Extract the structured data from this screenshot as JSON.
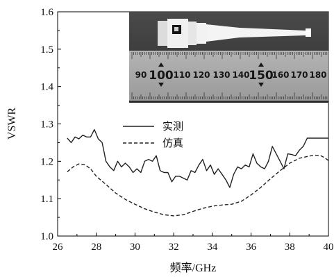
{
  "chart_data": {
    "type": "line",
    "title": "",
    "xlabel": "频率/GHz",
    "ylabel": "VSWR",
    "xlim": [
      26,
      40
    ],
    "ylim": [
      1.0,
      1.6
    ],
    "xticks": [
      26,
      28,
      30,
      32,
      34,
      36,
      38,
      40
    ],
    "yticks": [
      1.0,
      1.1,
      1.2,
      1.3,
      1.4,
      1.5,
      1.6
    ],
    "xtick_labels": [
      "26",
      "28",
      "30",
      "32",
      "34",
      "36",
      "38",
      "40"
    ],
    "ytick_labels": [
      "1.0",
      "1.1",
      "1.2",
      "1.3",
      "1.4",
      "1.5",
      "1.6"
    ],
    "grid": false,
    "legend_position": "center-left",
    "series": [
      {
        "name": "实测",
        "style": "solid",
        "color": "#222222",
        "x": [
          26.5,
          26.7,
          26.9,
          27.1,
          27.3,
          27.5,
          27.7,
          27.9,
          28.1,
          28.3,
          28.5,
          28.7,
          28.9,
          29.1,
          29.3,
          29.5,
          29.7,
          29.9,
          30.1,
          30.3,
          30.5,
          30.7,
          30.9,
          31.1,
          31.3,
          31.5,
          31.7,
          31.9,
          32.1,
          32.3,
          32.5,
          32.7,
          32.9,
          33.1,
          33.3,
          33.5,
          33.7,
          33.9,
          34.1,
          34.3,
          34.5,
          34.7,
          34.9,
          35.1,
          35.3,
          35.5,
          35.7,
          35.9,
          36.1,
          36.3,
          36.5,
          36.7,
          36.9,
          37.1,
          37.3,
          37.5,
          37.7,
          37.9,
          38.1,
          38.3,
          38.5,
          38.7,
          38.9,
          39.1,
          39.3,
          39.5,
          39.7,
          39.9,
          40.0
        ],
        "values": [
          1.262,
          1.25,
          1.265,
          1.26,
          1.27,
          1.265,
          1.265,
          1.285,
          1.26,
          1.25,
          1.2,
          1.185,
          1.175,
          1.2,
          1.185,
          1.195,
          1.185,
          1.17,
          1.18,
          1.17,
          1.2,
          1.205,
          1.2,
          1.215,
          1.175,
          1.17,
          1.17,
          1.145,
          1.16,
          1.16,
          1.155,
          1.15,
          1.175,
          1.17,
          1.19,
          1.205,
          1.175,
          1.19,
          1.165,
          1.18,
          1.165,
          1.15,
          1.13,
          1.165,
          1.185,
          1.18,
          1.19,
          1.185,
          1.22,
          1.195,
          1.185,
          1.18,
          1.2,
          1.24,
          1.22,
          1.2,
          1.18,
          1.22,
          1.218,
          1.215,
          1.23,
          1.24,
          1.262,
          1.262,
          1.262,
          1.262,
          1.262,
          1.262,
          1.262
        ]
      },
      {
        "name": "仿真",
        "style": "dashed",
        "color": "#222222",
        "x": [
          26.5,
          26.8,
          27.1,
          27.4,
          27.7,
          28.0,
          28.5,
          29.0,
          29.5,
          30.0,
          30.5,
          31.0,
          31.5,
          32.0,
          32.5,
          33.0,
          33.5,
          34.0,
          34.5,
          35.0,
          35.5,
          36.0,
          36.5,
          37.0,
          37.5,
          38.0,
          38.5,
          39.0,
          39.3,
          39.6,
          39.8,
          40.0
        ],
        "values": [
          1.172,
          1.185,
          1.193,
          1.191,
          1.18,
          1.16,
          1.138,
          1.115,
          1.098,
          1.085,
          1.073,
          1.064,
          1.057,
          1.054,
          1.057,
          1.066,
          1.074,
          1.08,
          1.083,
          1.085,
          1.093,
          1.11,
          1.13,
          1.153,
          1.175,
          1.195,
          1.208,
          1.214,
          1.216,
          1.215,
          1.21,
          1.202
        ]
      }
    ]
  },
  "inset_photo": {
    "ruler_numbers": [
      "90",
      "100",
      "110",
      "120",
      "130",
      "140",
      "150",
      "160",
      "170",
      "180"
    ]
  }
}
